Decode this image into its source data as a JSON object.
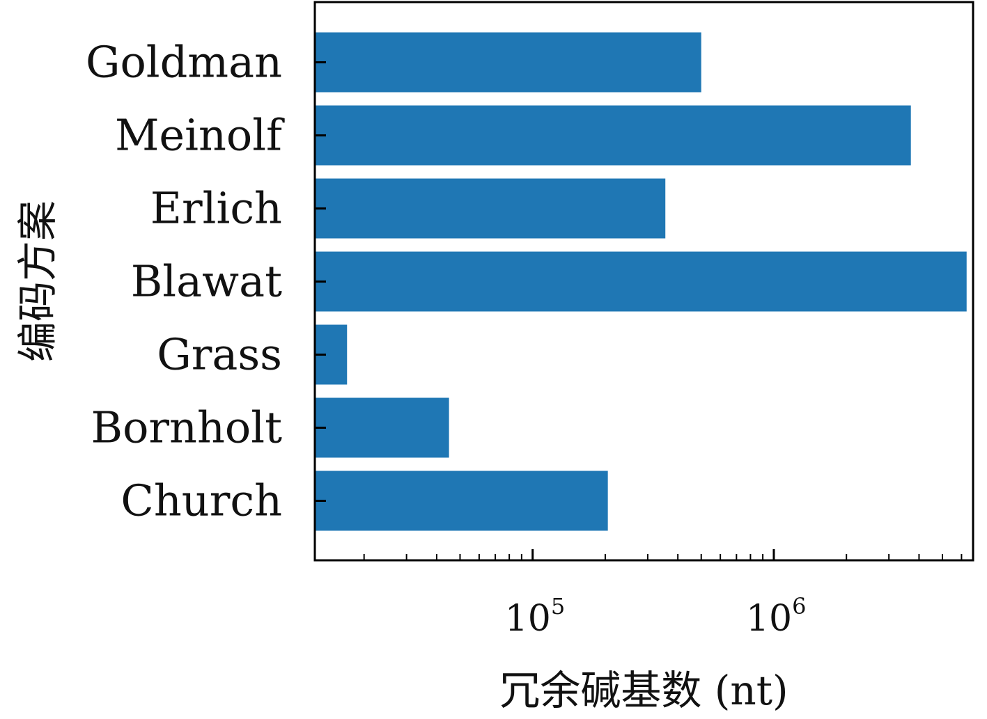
{
  "chart_data": {
    "type": "bar",
    "orientation": "horizontal",
    "categories": [
      "Goldman",
      "Meinolf",
      "Erlich",
      "Blawat",
      "Grass",
      "Bornholt",
      "Church"
    ],
    "values": [
      500000,
      3700000,
      355000,
      6300000,
      17000,
      45000,
      205000
    ],
    "xlabel": "冗余碱基数 (nt)",
    "ylabel": "编码方案",
    "x_scale": "log",
    "xlim": [
      12500,
      6700000
    ],
    "x_ticks": [
      {
        "value": 100000,
        "base": "10",
        "exp": "5"
      },
      {
        "value": 1000000,
        "base": "10",
        "exp": "6"
      }
    ],
    "bar_color": "#1f77b4",
    "grid": false,
    "legend": "none"
  }
}
